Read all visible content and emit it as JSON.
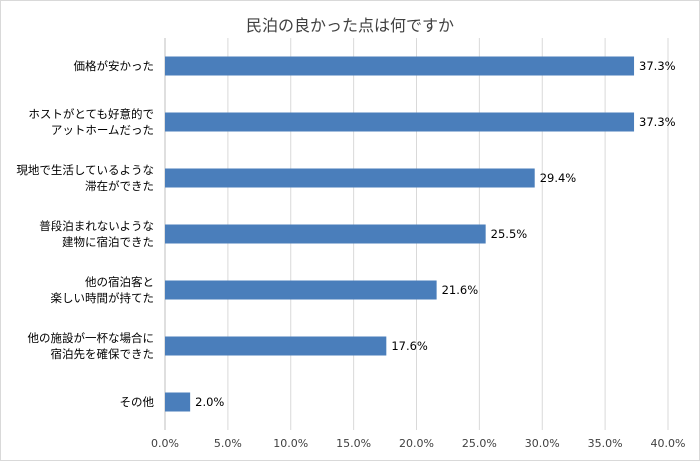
{
  "chart_data": {
    "type": "bar",
    "orientation": "horizontal",
    "title": "民泊の良かった点は何ですか",
    "categories": [
      [
        "価格が安かった"
      ],
      [
        "ホストがとても好意的で",
        "アットホームだった"
      ],
      [
        "現地で生活しているような",
        "滞在ができた"
      ],
      [
        "普段泊まれないような",
        "建物に宿泊できた"
      ],
      [
        "他の宿泊客と",
        "楽しい時間が持てた"
      ],
      [
        "他の施設が一杯な場合に",
        "宿泊先を確保できた"
      ],
      [
        "その他"
      ]
    ],
    "values": [
      37.3,
      37.3,
      29.4,
      25.5,
      21.6,
      17.6,
      2.0
    ],
    "data_labels": [
      "37.3%",
      "37.3%",
      "29.4%",
      "25.5%",
      "21.6%",
      "17.6%",
      "2.0%"
    ],
    "xlim": [
      0,
      40
    ],
    "x_ticks": [
      0,
      5,
      10,
      15,
      20,
      25,
      30,
      35,
      40
    ],
    "x_tick_labels": [
      "0.0%",
      "5.0%",
      "10.0%",
      "15.0%",
      "20.0%",
      "25.0%",
      "30.0%",
      "35.0%",
      "40.0%"
    ],
    "grid": true,
    "bar_color": "#4a7ebb",
    "grid_color": "#d9d9d9"
  }
}
